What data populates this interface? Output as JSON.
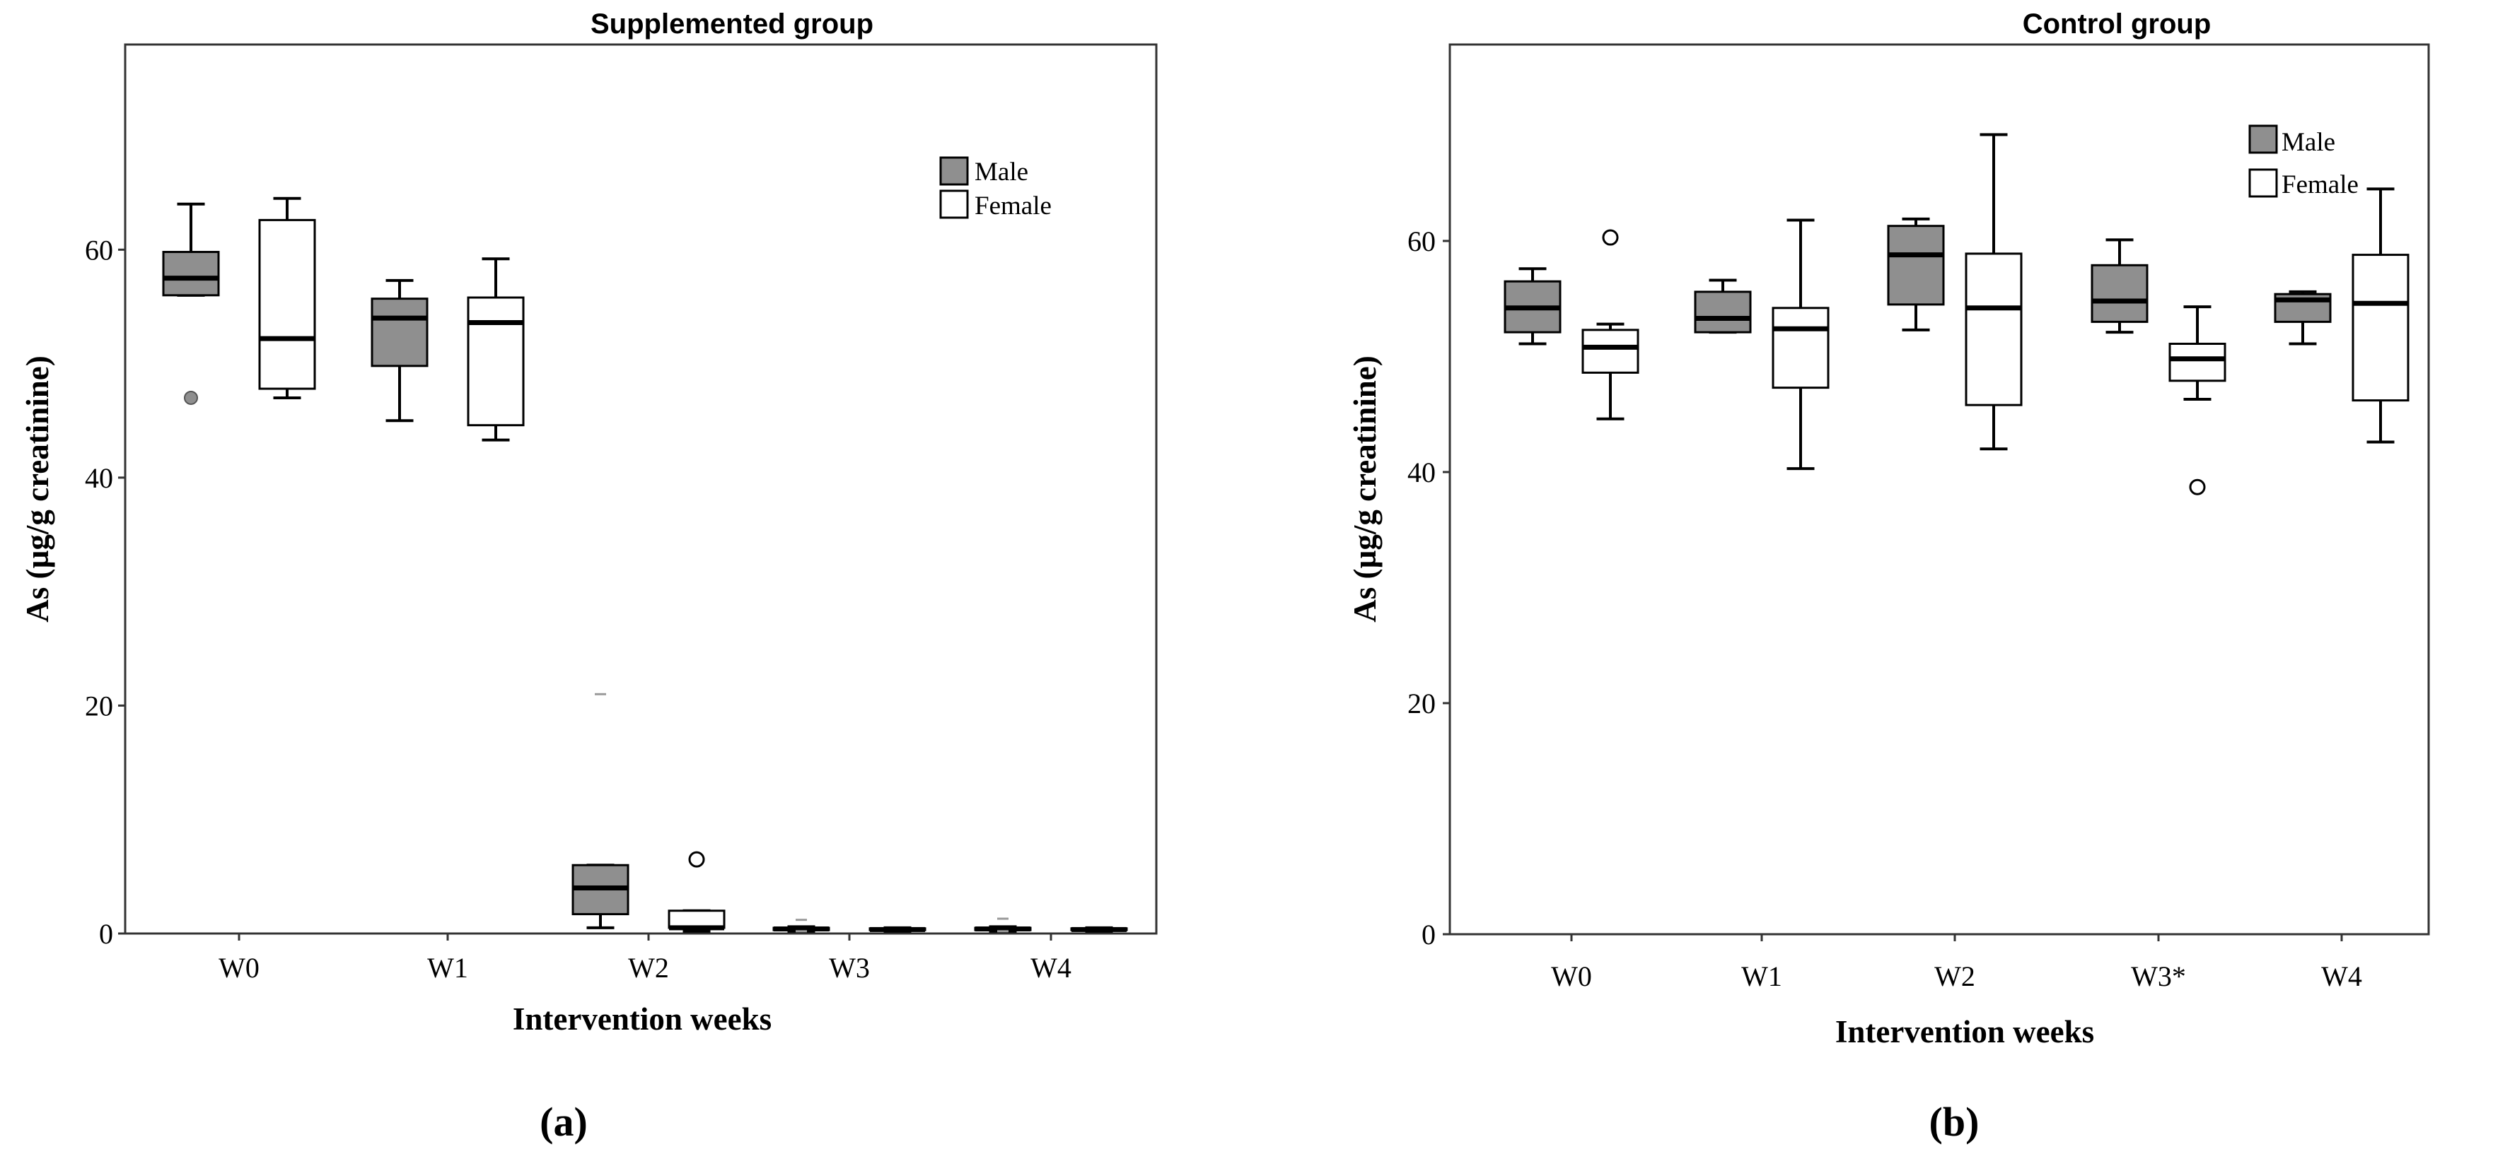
{
  "chart_data": [
    {
      "type": "box",
      "panel_label": "(a)",
      "title": "Supplemented group",
      "xlabel": "Intervention weeks",
      "ylabel": "As (µg/g creatinine)",
      "ylim": [
        0,
        78
      ],
      "yticks": [
        0,
        20,
        40,
        60
      ],
      "categories": [
        "W0",
        "W1",
        "W2",
        "W3",
        "W4"
      ],
      "legend": [
        "Male",
        "Female"
      ],
      "series": [
        {
          "name": "Male",
          "color": "#8f8f8f",
          "boxes": [
            {
              "min": 56,
              "q1": 56,
              "median": 57.5,
              "q3": 59.8,
              "max": 64,
              "outliers": [
                47
              ],
              "outlier_style": "dot"
            },
            {
              "min": 45,
              "q1": 49.8,
              "median": 54,
              "q3": 55.7,
              "max": 57.3,
              "outliers": []
            },
            {
              "min": 0.5,
              "q1": 1.7,
              "median": 4,
              "q3": 6,
              "max": 6,
              "outliers": [
                21
              ],
              "outlier_style": "dash"
            },
            {
              "min": 0.2,
              "q1": 0.3,
              "median": 0.4,
              "q3": 0.5,
              "max": 0.6,
              "outliers": [
                0.2,
                1.2
              ],
              "outlier_style": "dash"
            },
            {
              "min": 0.2,
              "q1": 0.3,
              "median": 0.4,
              "q3": 0.5,
              "max": 0.6,
              "outliers": [
                0.2,
                1.3
              ],
              "outlier_style": "dash"
            }
          ]
        },
        {
          "name": "Female",
          "color": "#ffffff",
          "boxes": [
            {
              "min": 47,
              "q1": 47.8,
              "median": 52.2,
              "q3": 62.6,
              "max": 64.5,
              "outliers": []
            },
            {
              "min": 43.3,
              "q1": 44.6,
              "median": 53.6,
              "q3": 55.8,
              "max": 59.2,
              "outliers": []
            },
            {
              "min": 0.2,
              "q1": 0.5,
              "median": 0.5,
              "q3": 2,
              "max": 2,
              "outliers": [
                6.5
              ],
              "outlier_style": "circle"
            },
            {
              "min": 0.2,
              "q1": 0.3,
              "median": 0.35,
              "q3": 0.45,
              "max": 0.5,
              "outliers": []
            },
            {
              "min": 0.2,
              "q1": 0.3,
              "median": 0.35,
              "q3": 0.45,
              "max": 0.5,
              "outliers": []
            }
          ]
        }
      ]
    },
    {
      "type": "box",
      "panel_label": "(b)",
      "title": "Control group",
      "xlabel": "Intervention weeks",
      "ylabel": "As (µg/g creatinine)",
      "ylim": [
        0,
        77
      ],
      "yticks": [
        0,
        20,
        40,
        60
      ],
      "categories": [
        "W0",
        "W1",
        "W2",
        "W3*",
        "W4"
      ],
      "legend": [
        "Male",
        "Female"
      ],
      "series": [
        {
          "name": "Male",
          "color": "#8f8f8f",
          "boxes": [
            {
              "min": 51.1,
              "q1": 52.1,
              "median": 54.2,
              "q3": 56.5,
              "max": 57.6,
              "outliers": []
            },
            {
              "min": 52.1,
              "q1": 52.1,
              "median": 53.3,
              "q3": 55.6,
              "max": 56.6,
              "outliers": []
            },
            {
              "min": 52.3,
              "q1": 54.5,
              "median": 58.8,
              "q3": 61.3,
              "max": 61.9,
              "outliers": []
            },
            {
              "min": 52.1,
              "q1": 53,
              "median": 54.8,
              "q3": 57.9,
              "max": 60.1,
              "outliers": []
            },
            {
              "min": 51.1,
              "q1": 53,
              "median": 54.9,
              "q3": 55.4,
              "max": 55.6,
              "outliers": []
            }
          ]
        },
        {
          "name": "Female",
          "color": "#ffffff",
          "boxes": [
            {
              "min": 44.6,
              "q1": 48.6,
              "median": 50.8,
              "q3": 52.3,
              "max": 52.8,
              "outliers": [
                60.3
              ],
              "outlier_style": "circle"
            },
            {
              "min": 40.3,
              "q1": 47.3,
              "median": 52.4,
              "q3": 54.2,
              "max": 61.8,
              "outliers": []
            },
            {
              "min": 42,
              "q1": 45.8,
              "median": 54.2,
              "q3": 58.9,
              "max": 69.2,
              "outliers": []
            },
            {
              "min": 46.3,
              "q1": 47.9,
              "median": 49.8,
              "q3": 51.1,
              "max": 54.3,
              "outliers": [
                38.7
              ],
              "outlier_style": "circle"
            },
            {
              "min": 42.6,
              "q1": 46.2,
              "median": 54.6,
              "q3": 58.8,
              "max": 64.5,
              "outliers": []
            }
          ]
        }
      ]
    }
  ]
}
